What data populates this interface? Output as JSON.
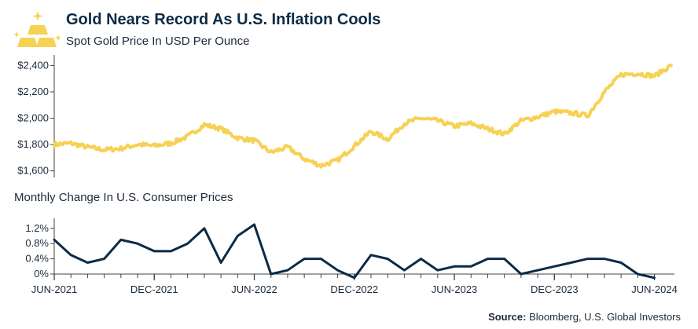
{
  "header": {
    "title": "Gold Nears Record As U.S. Inflation Cools",
    "subtitle": "Spot Gold Price In USD Per Ounce"
  },
  "bottom_panel": {
    "subtitle": "Monthly Change In U.S. Consumer Prices"
  },
  "footer": {
    "source_label": "Source:",
    "source_text": " Bloomberg, U.S. Global Investors"
  },
  "colors": {
    "gold": "#F7D154",
    "navy": "#0C2A44",
    "axis": "#444444"
  },
  "icons": [
    "gold-bars-icon",
    "sparkle-icon"
  ],
  "chart_data": [
    {
      "type": "line",
      "title": "Spot Gold Price In USD Per Ounce",
      "ylim": [
        1550,
        2480
      ],
      "yticks": [
        "$1,600",
        "$1,800",
        "$2,000",
        "$2,200",
        "$2,400"
      ],
      "ytick_values": [
        1600,
        1800,
        2000,
        2200,
        2400
      ],
      "x": [
        "2021-06",
        "2021-07",
        "2021-08",
        "2021-09",
        "2021-10",
        "2021-11",
        "2021-12",
        "2022-01",
        "2022-02",
        "2022-03",
        "2022-04",
        "2022-05",
        "2022-06",
        "2022-07",
        "2022-08",
        "2022-09",
        "2022-10",
        "2022-11",
        "2022-12",
        "2023-01",
        "2023-02",
        "2023-03",
        "2023-04",
        "2023-05",
        "2023-06",
        "2023-07",
        "2023-08",
        "2023-09",
        "2023-10",
        "2023-11",
        "2023-12",
        "2024-01",
        "2024-02",
        "2024-03",
        "2024-04",
        "2024-05",
        "2024-06",
        "2024-07"
      ],
      "series": [
        {
          "values": [
            1800,
            1810,
            1780,
            1760,
            1770,
            1800,
            1790,
            1810,
            1860,
            1950,
            1920,
            1850,
            1830,
            1740,
            1780,
            1690,
            1640,
            1680,
            1790,
            1900,
            1840,
            1960,
            2000,
            1980,
            1940,
            1960,
            1920,
            1880,
            1980,
            2010,
            2050,
            2040,
            2020,
            2200,
            2330,
            2340,
            2320,
            2400
          ]
        }
      ]
    },
    {
      "type": "line",
      "title": "Monthly Change In U.S. Consumer Prices",
      "ylim": [
        0,
        1.3
      ],
      "yticks": [
        "0%",
        "0.4%",
        "0.8%",
        "1.2%"
      ],
      "ytick_values": [
        0,
        0.4,
        0.8,
        1.2
      ],
      "x_tick_labels": [
        "JUN-2021",
        "DEC-2021",
        "JUN-2022",
        "DEC-2022",
        "JUN-2023",
        "DEC-2023",
        "JUN-2024"
      ],
      "x": [
        "2021-06",
        "2021-07",
        "2021-08",
        "2021-09",
        "2021-10",
        "2021-11",
        "2021-12",
        "2022-01",
        "2022-02",
        "2022-03",
        "2022-04",
        "2022-05",
        "2022-06",
        "2022-07",
        "2022-08",
        "2022-09",
        "2022-10",
        "2022-11",
        "2022-12",
        "2023-01",
        "2023-02",
        "2023-03",
        "2023-04",
        "2023-05",
        "2023-06",
        "2023-07",
        "2023-08",
        "2023-09",
        "2023-10",
        "2023-11",
        "2023-12",
        "2024-01",
        "2024-02",
        "2024-03",
        "2024-04",
        "2024-05",
        "2024-06"
      ],
      "series": [
        {
          "values": [
            0.9,
            0.5,
            0.3,
            0.4,
            0.9,
            0.8,
            0.6,
            0.6,
            0.8,
            1.2,
            0.3,
            1.0,
            1.3,
            0.0,
            0.1,
            0.4,
            0.4,
            0.1,
            -0.1,
            0.5,
            0.4,
            0.1,
            0.4,
            0.1,
            0.2,
            0.2,
            0.4,
            0.4,
            0.0,
            0.1,
            0.2,
            0.3,
            0.4,
            0.4,
            0.3,
            0.0,
            -0.1
          ]
        }
      ]
    }
  ]
}
